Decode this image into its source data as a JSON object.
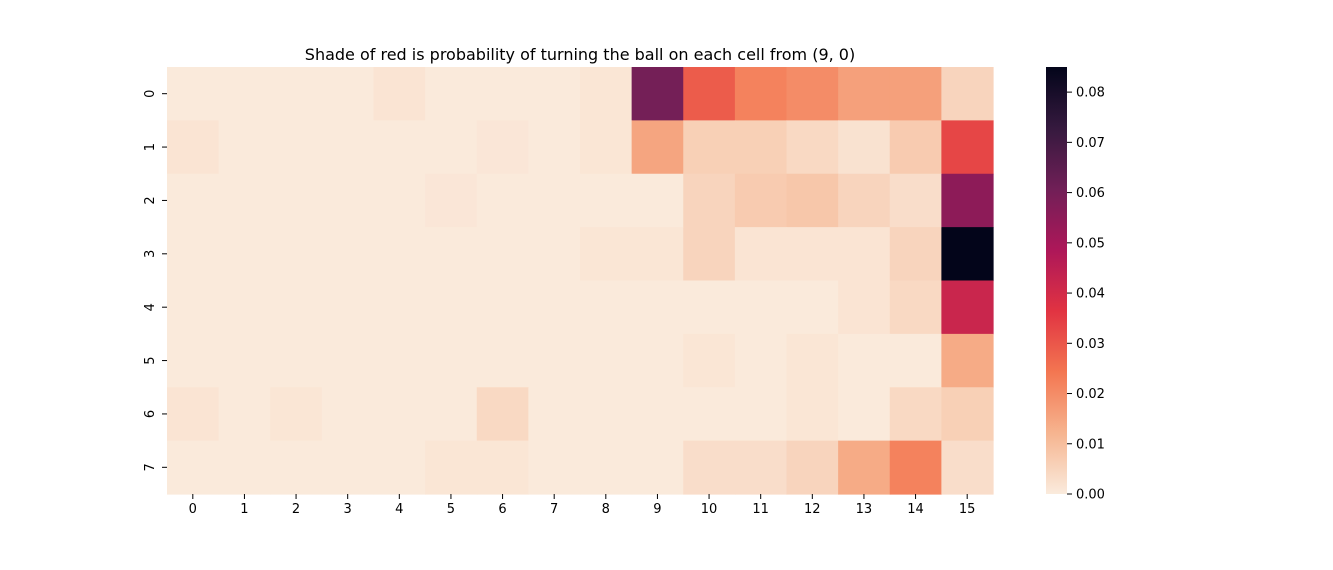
{
  "chart_data": {
    "type": "heatmap",
    "title": "Shade of red is probability of turning the ball on each cell from (9, 0)",
    "xlabel": "",
    "ylabel": "",
    "x_categories": [
      "0",
      "1",
      "2",
      "3",
      "4",
      "5",
      "6",
      "7",
      "8",
      "9",
      "10",
      "11",
      "12",
      "13",
      "14",
      "15"
    ],
    "y_categories": [
      "0",
      "1",
      "2",
      "3",
      "4",
      "5",
      "6",
      "7"
    ],
    "values": [
      [
        0.0003,
        0.0003,
        0.0003,
        0.0003,
        0.0015,
        0.0003,
        0.0003,
        0.0003,
        0.0012,
        0.06,
        0.029,
        0.022,
        0.02,
        0.016,
        0.016,
        0.005
      ],
      [
        0.0015,
        0.0003,
        0.0003,
        0.0003,
        0.0003,
        0.0003,
        0.001,
        0.0003,
        0.0012,
        0.015,
        0.006,
        0.006,
        0.004,
        0.002,
        0.007,
        0.033
      ],
      [
        0.0003,
        0.0003,
        0.0003,
        0.0003,
        0.0003,
        0.001,
        0.0003,
        0.0003,
        0.0003,
        0.0003,
        0.005,
        0.007,
        0.008,
        0.005,
        0.003,
        0.055
      ],
      [
        0.0003,
        0.0003,
        0.0003,
        0.0003,
        0.0003,
        0.0003,
        0.0003,
        0.0003,
        0.0012,
        0.0012,
        0.005,
        0.0015,
        0.0015,
        0.0015,
        0.005,
        0.085
      ],
      [
        0.0003,
        0.0003,
        0.0003,
        0.0003,
        0.0003,
        0.0003,
        0.0003,
        0.0003,
        0.0003,
        0.0003,
        0.0003,
        0.0003,
        0.0003,
        0.0015,
        0.004,
        0.042
      ],
      [
        0.0003,
        0.0003,
        0.0003,
        0.0003,
        0.0003,
        0.0003,
        0.0003,
        0.0003,
        0.0003,
        0.0003,
        0.0012,
        0.0003,
        0.0012,
        0.0003,
        0.0003,
        0.014
      ],
      [
        0.0015,
        0.0003,
        0.0012,
        0.0003,
        0.0003,
        0.0003,
        0.004,
        0.0003,
        0.0003,
        0.0003,
        0.0003,
        0.0003,
        0.0012,
        0.0003,
        0.004,
        0.006
      ],
      [
        0.0003,
        0.0003,
        0.0003,
        0.0003,
        0.0003,
        0.0012,
        0.0012,
        0.0003,
        0.0003,
        0.0003,
        0.003,
        0.003,
        0.005,
        0.014,
        0.022,
        0.003
      ]
    ],
    "colorbar": {
      "min": 0.0,
      "max": 0.085,
      "ticks": [
        0.0,
        0.01,
        0.02,
        0.03,
        0.04,
        0.05,
        0.06,
        0.07,
        0.08
      ],
      "tick_labels": [
        "0.00",
        "0.01",
        "0.02",
        "0.03",
        "0.04",
        "0.05",
        "0.06",
        "0.07",
        "0.08"
      ],
      "colormap": "rocket_r",
      "stops": [
        "#faebdd",
        "#f6b48f",
        "#f37651",
        "#e13342",
        "#ad1759",
        "#701f57",
        "#35193e",
        "#03051a"
      ]
    },
    "grid": false,
    "legend": "colorbar-right"
  }
}
